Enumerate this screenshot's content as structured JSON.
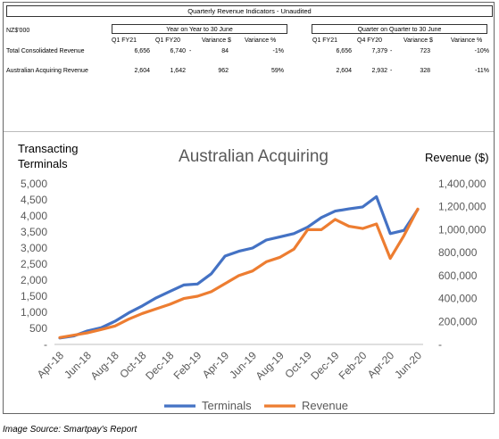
{
  "table": {
    "title": "Quarterly Revenue Indicators - Unaudited",
    "unit_label": "NZ$'000",
    "groups": [
      {
        "label": "Year on Year to 30 June",
        "columns": [
          "Q1 FY21",
          "Q1 FY20",
          "Variance $",
          "Variance %"
        ]
      },
      {
        "label": "Quarter on Quarter to 30 June",
        "columns": [
          "Q1 FY21",
          "Q4 FY20",
          "Variance $",
          "Variance %"
        ]
      }
    ],
    "rows": [
      {
        "label": "Total Consolidated Revenue",
        "yoy": [
          "6,656",
          "6,740",
          "-",
          "84",
          "-1%"
        ],
        "qoq": [
          "6,656",
          "7,379",
          "-",
          "723",
          "-10%"
        ]
      },
      {
        "label": "Australian Acquiring Revenue",
        "yoy": [
          "2,604",
          "1,642",
          "",
          "962",
          "59%"
        ],
        "qoq": [
          "2,604",
          "2,932",
          "-",
          "328",
          "-11%"
        ]
      }
    ]
  },
  "chart_data": {
    "type": "line",
    "title": "Australian Acquiring",
    "y_left_label": [
      "Transacting",
      "Terminals"
    ],
    "y_right_label": "Revenue ($)",
    "x": [
      "Apr-18",
      "May-18",
      "Jun-18",
      "Jul-18",
      "Aug-18",
      "Sep-18",
      "Oct-18",
      "Nov-18",
      "Dec-18",
      "Jan-19",
      "Feb-19",
      "Mar-19",
      "Apr-19",
      "May-19",
      "Jun-19",
      "Jul-19",
      "Aug-19",
      "Sep-19",
      "Oct-19",
      "Nov-19",
      "Dec-19",
      "Jan-20",
      "Feb-20",
      "Mar-20",
      "Apr-20",
      "May-20",
      "Jun-20"
    ],
    "x_tick_labels": [
      "Apr-18",
      "Jun-18",
      "Aug-18",
      "Oct-18",
      "Dec-18",
      "Feb-19",
      "Apr-19",
      "Jun-19",
      "Aug-19",
      "Oct-19",
      "Dec-19",
      "Feb-20",
      "Apr-20",
      "Jun-20"
    ],
    "y_left_ticks": [
      "-",
      "500",
      "1,000",
      "1,500",
      "2,000",
      "2,500",
      "3,000",
      "3,500",
      "4,000",
      "4,500",
      "5,000"
    ],
    "y_left_lim": [
      0,
      5000
    ],
    "y_right_ticks": [
      "-",
      "200,000",
      "400,000",
      "600,000",
      "800,000",
      "1,000,000",
      "1,200,000",
      "1,400,000"
    ],
    "y_right_lim": [
      0,
      1400000
    ],
    "series": [
      {
        "name": "Terminals",
        "axis": "left",
        "color": "#4472C4",
        "values": [
          200,
          260,
          420,
          520,
          720,
          980,
          1200,
          1450,
          1650,
          1850,
          1880,
          2200,
          2750,
          2900,
          3000,
          3250,
          3350,
          3450,
          3650,
          3950,
          4150,
          4220,
          4280,
          4600,
          3450,
          3550,
          4200
        ]
      },
      {
        "name": "Revenue",
        "axis": "right",
        "color": "#ED7D31",
        "values": [
          60000,
          80000,
          100000,
          130000,
          160000,
          220000,
          270000,
          310000,
          350000,
          400000,
          420000,
          460000,
          530000,
          600000,
          640000,
          720000,
          760000,
          830000,
          1000000,
          1000000,
          1090000,
          1030000,
          1010000,
          1050000,
          750000,
          950000,
          1180000
        ]
      }
    ],
    "legend_position": "bottom",
    "grid": false
  },
  "caption": "Image Source: Smartpay's Report"
}
